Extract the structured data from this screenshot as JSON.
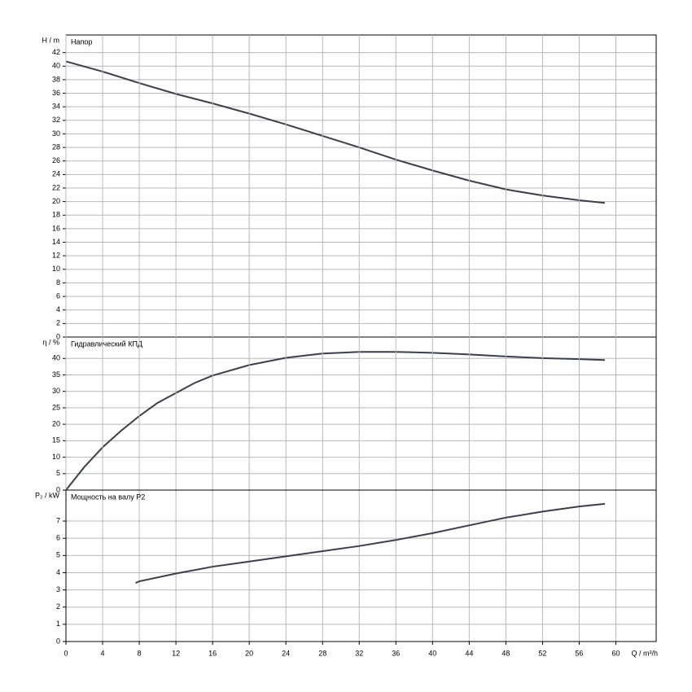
{
  "chart_data": [
    {
      "type": "line",
      "title": "Напор",
      "ylabel": "H / m",
      "x": [
        0,
        4,
        8,
        12,
        16,
        20,
        24,
        28,
        32,
        36,
        40,
        44,
        48,
        52,
        56,
        58.8
      ],
      "series": [
        {
          "color": "#3a3f4a",
          "values": [
            40.7,
            39.2,
            37.5,
            35.9,
            34.5,
            33.0,
            31.4,
            29.7,
            28.0,
            26.2,
            24.6,
            23.1,
            21.8,
            20.9,
            20.2,
            19.8
          ]
        }
      ],
      "xlim": [
        0,
        64.4
      ],
      "ylim": [
        0,
        44.6
      ],
      "yticks": [
        0,
        2,
        4,
        6,
        8,
        10,
        12,
        14,
        16,
        18,
        20,
        22,
        24,
        26,
        28,
        30,
        32,
        34,
        36,
        38,
        40,
        42
      ],
      "grid": true
    },
    {
      "type": "line",
      "title": "Гидравлический КПД",
      "ylabel": "η / %",
      "x": [
        0,
        2,
        4,
        6,
        8,
        10,
        12,
        14,
        16,
        20,
        24,
        28,
        32,
        36,
        40,
        44,
        48,
        52,
        56,
        58.8
      ],
      "series": [
        {
          "color": "#3a3f4a",
          "values": [
            0,
            7,
            13,
            18,
            22.5,
            26.5,
            29.5,
            32.5,
            34.8,
            38,
            40.2,
            41.5,
            42,
            42,
            41.7,
            41.2,
            40.6,
            40.1,
            39.8,
            39.5
          ]
        }
      ],
      "xlim": [
        0,
        64.4
      ],
      "ylim": [
        0,
        46.5
      ],
      "yticks": [
        0,
        5,
        10,
        15,
        20,
        25,
        30,
        35,
        40
      ],
      "grid": true
    },
    {
      "type": "line",
      "title": "Мощность на валу P2",
      "ylabel": "P₂ / kW",
      "xlabel": "Q / m³/h",
      "x": [
        7.6,
        8,
        12,
        16,
        20,
        24,
        28,
        32,
        36,
        40,
        44,
        48,
        52,
        56,
        58.8
      ],
      "series": [
        {
          "color": "#3a3f4a",
          "values": [
            3.4,
            3.5,
            3.95,
            4.35,
            4.65,
            4.95,
            5.25,
            5.55,
            5.9,
            6.3,
            6.75,
            7.2,
            7.55,
            7.85,
            8.0
          ]
        }
      ],
      "xlim": [
        0,
        64.4
      ],
      "ylim": [
        0,
        8.8
      ],
      "xticks": [
        0,
        4,
        8,
        12,
        16,
        20,
        24,
        28,
        32,
        36,
        40,
        44,
        48,
        52,
        56,
        60
      ],
      "yticks": [
        0,
        1,
        2,
        3,
        4,
        5,
        6,
        7
      ],
      "grid": true
    }
  ]
}
